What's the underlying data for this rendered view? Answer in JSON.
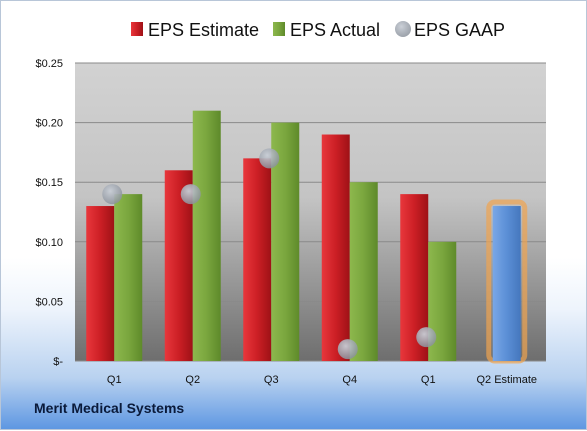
{
  "company": "Merit Medical Systems",
  "colors": {
    "estimate": "#c4161c",
    "actual": "#77a13a",
    "gaap": "#a8aeb6",
    "future_estimate": "#5b8fd6",
    "future_glow": "#f0a450"
  },
  "chart_data": {
    "type": "bar",
    "categories": [
      "Q1",
      "Q2",
      "Q3",
      "Q4",
      "Q1",
      "Q2 Estimate"
    ],
    "series": [
      {
        "name": "EPS Estimate",
        "values": [
          0.13,
          0.16,
          0.17,
          0.19,
          0.14,
          0.13
        ]
      },
      {
        "name": "EPS Actual",
        "values": [
          0.14,
          0.21,
          0.2,
          0.15,
          0.1,
          null
        ]
      },
      {
        "name": "EPS GAAP",
        "values": [
          0.14,
          0.14,
          0.17,
          0.01,
          0.02,
          null
        ]
      }
    ],
    "ylim": [
      0,
      0.25
    ],
    "y_ticks": [
      {
        "value": 0,
        "label": "$-"
      },
      {
        "value": 0.05,
        "label": "$0.05"
      },
      {
        "value": 0.1,
        "label": "$0.10"
      },
      {
        "value": 0.15,
        "label": "$0.15"
      },
      {
        "value": 0.2,
        "label": "$0.20"
      },
      {
        "value": 0.25,
        "label": "$0.25"
      }
    ],
    "legend": {
      "position": "top",
      "items": [
        {
          "label": "EPS Estimate",
          "icon": "red-square-icon"
        },
        {
          "label": "EPS Actual",
          "icon": "green-square-icon"
        },
        {
          "label": "EPS GAAP",
          "icon": "gray-circle-icon"
        }
      ]
    },
    "grid": true
  }
}
